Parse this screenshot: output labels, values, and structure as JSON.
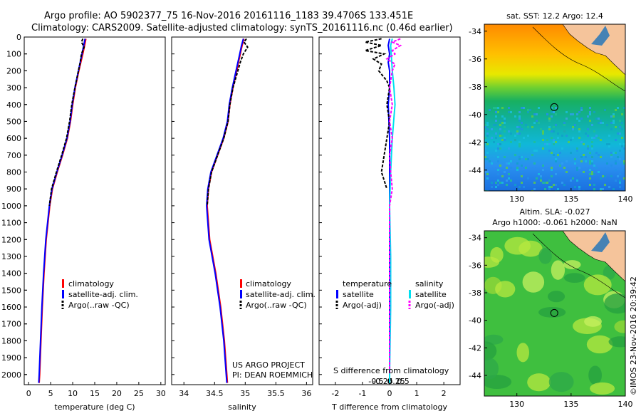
{
  "header": {
    "line1": "Argo profile: AO 5902377_75 16-Nov-2016 20161116_1183 39.4706S 133.451E",
    "line2": "Climatology: CARS2009. Satellite-adjusted climatology: synTS_20161116.nc (0.46d earlier)"
  },
  "colors": {
    "climatology": "#ff0000",
    "satellite": "#0000ff",
    "argo": "#000000",
    "sal_satellite": "#00e0f0",
    "sal_argo": "#ff00ff",
    "land": "#f5c49b"
  },
  "chart_data": [
    {
      "type": "line",
      "name": "temperature-profile",
      "xlabel": "temperature (deg C)",
      "ylabel": "",
      "xlim": [
        -1,
        31
      ],
      "ylim": [
        2060,
        0
      ],
      "xticks": [
        0,
        5,
        10,
        15,
        20,
        25,
        30
      ],
      "yticks": [
        0,
        100,
        200,
        300,
        400,
        500,
        600,
        700,
        800,
        900,
        1000,
        1100,
        1200,
        1300,
        1400,
        1500,
        1600,
        1700,
        1800,
        1900,
        2000
      ],
      "legend": [
        "climatology",
        "satellite-adj. clim.",
        "Argo(..raw -QC)"
      ],
      "legend_position": "lower-center",
      "series": [
        {
          "name": "climatology",
          "depth": [
            10,
            50,
            100,
            200,
            300,
            400,
            500,
            600,
            700,
            800,
            900,
            1000,
            1200,
            1400,
            1600,
            1800,
            2000,
            2050
          ],
          "values": [
            13.0,
            12.7,
            12.3,
            11.4,
            10.6,
            10.0,
            9.5,
            8.8,
            7.7,
            6.5,
            5.4,
            4.8,
            4.0,
            3.5,
            3.1,
            2.8,
            2.5,
            2.4
          ]
        },
        {
          "name": "satellite-adj. clim.",
          "depth": [
            10,
            50,
            100,
            200,
            300,
            400,
            500,
            600,
            700,
            800,
            900,
            1000,
            1200,
            1400,
            1600,
            1800,
            2000,
            2050
          ],
          "values": [
            12.8,
            12.5,
            12.1,
            11.3,
            10.5,
            9.9,
            9.4,
            8.7,
            7.6,
            6.4,
            5.3,
            4.7,
            3.9,
            3.4,
            3.0,
            2.7,
            2.4,
            2.3
          ]
        },
        {
          "name": "Argo(..raw -QC)",
          "depth": [
            10,
            30,
            60,
            100,
            150,
            200,
            300,
            400,
            500,
            600,
            700,
            800,
            900,
            1000
          ],
          "values": [
            12.3,
            12.0,
            12.6,
            12.0,
            11.7,
            11.3,
            10.5,
            9.8,
            9.3,
            8.6,
            7.5,
            6.3,
            5.2,
            4.7
          ]
        }
      ]
    },
    {
      "type": "line",
      "name": "salinity-profile",
      "xlabel": "salinity",
      "xlim": [
        33.8,
        36.1
      ],
      "ylim": [
        2060,
        0
      ],
      "xticks": [
        34,
        34.5,
        35,
        35.5,
        36
      ],
      "legend": [
        "climatology",
        "satellite-adj. clim.",
        "Argo(..raw -QC)"
      ],
      "legend_position": "lower-center",
      "annotation": [
        "US ARGO PROJECT",
        "PI: DEAN ROEMMICH"
      ],
      "series": [
        {
          "name": "climatology",
          "depth": [
            10,
            50,
            100,
            200,
            300,
            400,
            500,
            600,
            700,
            800,
            900,
            1000,
            1200,
            1400,
            1600,
            1800,
            2000,
            2050
          ],
          "values": [
            34.98,
            34.95,
            34.92,
            34.86,
            34.8,
            34.75,
            34.72,
            34.65,
            34.55,
            34.45,
            34.4,
            34.38,
            34.42,
            34.52,
            34.6,
            34.66,
            34.7,
            34.71
          ]
        },
        {
          "name": "satellite-adj. clim.",
          "depth": [
            10,
            50,
            100,
            200,
            300,
            400,
            500,
            600,
            700,
            800,
            900,
            1000,
            1200,
            1400,
            1600,
            1800,
            2000,
            2050
          ],
          "values": [
            34.97,
            34.94,
            34.91,
            34.85,
            34.79,
            34.74,
            34.71,
            34.64,
            34.54,
            34.44,
            34.39,
            34.37,
            34.41,
            34.51,
            34.59,
            34.65,
            34.69,
            34.7
          ]
        },
        {
          "name": "Argo(..raw -QC)",
          "depth": [
            10,
            30,
            60,
            100,
            150,
            200,
            300,
            400,
            500,
            600,
            700,
            800,
            900,
            1000
          ],
          "values": [
            35.02,
            34.98,
            35.04,
            34.97,
            34.92,
            34.88,
            34.8,
            34.75,
            34.72,
            34.65,
            34.55,
            34.45,
            34.4,
            34.38
          ]
        }
      ]
    },
    {
      "type": "line",
      "name": "difference-profile",
      "xlabel": "T difference from climatology",
      "xlabel_top": "S difference from climatology",
      "xlim": [
        -2.6,
        2.6
      ],
      "ylim": [
        2060,
        0
      ],
      "xticks": [
        -2,
        -1,
        0,
        1,
        2
      ],
      "xtick_labels_top": [
        "-0.5",
        "-0.25",
        "0",
        "0.25",
        "0.5"
      ],
      "legend_left_title": "temperature",
      "legend_right_title": "salinity",
      "legend_left": [
        "satellite",
        "Argo(-adj)"
      ],
      "legend_right": [
        "satellite",
        "Argo(-adj)"
      ],
      "series": [
        {
          "name": "T satellite",
          "depth": [
            10,
            50,
            100,
            150,
            200,
            300,
            400,
            600,
            800,
            1000,
            1300,
            1600,
            2000,
            2050
          ],
          "values": [
            0.0,
            -0.05,
            0.0,
            -0.05,
            0.0,
            0.0,
            -0.05,
            0.0,
            0.0,
            0.0,
            0.0,
            0.0,
            0.0,
            0.0
          ]
        },
        {
          "name": "T Argo(-adj)",
          "depth": [
            10,
            30,
            50,
            80,
            100,
            130,
            160,
            200,
            260,
            300,
            400,
            500,
            600,
            700,
            800,
            900
          ],
          "values": [
            -0.3,
            -0.9,
            -0.3,
            -0.9,
            -0.2,
            -0.6,
            -0.3,
            -0.4,
            -0.1,
            0.0,
            -0.1,
            0.0,
            -0.1,
            -0.2,
            -0.3,
            -0.1
          ]
        },
        {
          "name": "S satellite",
          "depth": [
            10,
            50,
            100,
            200,
            300,
            400,
            600,
            800,
            1000,
            1300,
            1600,
            2000,
            2050
          ],
          "values": [
            0.05,
            0.02,
            0.03,
            0.05,
            0.08,
            0.1,
            0.05,
            0.02,
            0.0,
            0.02,
            0.02,
            0.0,
            0.0
          ]
        },
        {
          "name": "S Argo(-adj)",
          "depth": [
            10,
            30,
            50,
            80,
            100,
            130,
            160,
            200,
            300,
            400,
            500,
            600,
            700,
            800,
            900,
            1000,
            1200,
            1400,
            1600,
            1800,
            2000
          ],
          "values": [
            0.2,
            0.05,
            0.2,
            0.05,
            0.1,
            -0.05,
            0.1,
            0.05,
            0.0,
            0.05,
            0.0,
            0.05,
            0.0,
            0.02,
            0.05,
            0.0,
            0.0,
            0.0,
            0.0,
            0.0,
            0.0
          ]
        }
      ]
    },
    {
      "type": "heatmap",
      "name": "sst-map",
      "title": "sat. SST: 12.2  Argo: 12.4",
      "xlim": [
        127,
        140
      ],
      "ylim": [
        -45.5,
        -33.5
      ],
      "xticks": [
        130,
        135,
        140
      ],
      "yticks": [
        -34,
        -36,
        -38,
        -40,
        -42,
        -44
      ],
      "marker": {
        "lon": 133.45,
        "lat": -39.47
      }
    },
    {
      "type": "heatmap",
      "name": "sla-map",
      "title_line1": "Altim. SLA: -0.027",
      "title_line2": "Argo h1000: -0.061 h2000: NaN",
      "xlim": [
        127,
        140
      ],
      "ylim": [
        -45.5,
        -33.5
      ],
      "xticks": [
        130,
        135,
        140
      ],
      "yticks": [
        -34,
        -36,
        -38,
        -40,
        -42,
        -44
      ],
      "marker": {
        "lon": 133.45,
        "lat": -39.47
      }
    }
  ],
  "credit": "©IMOS 23-Nov-2016 20:39:42"
}
